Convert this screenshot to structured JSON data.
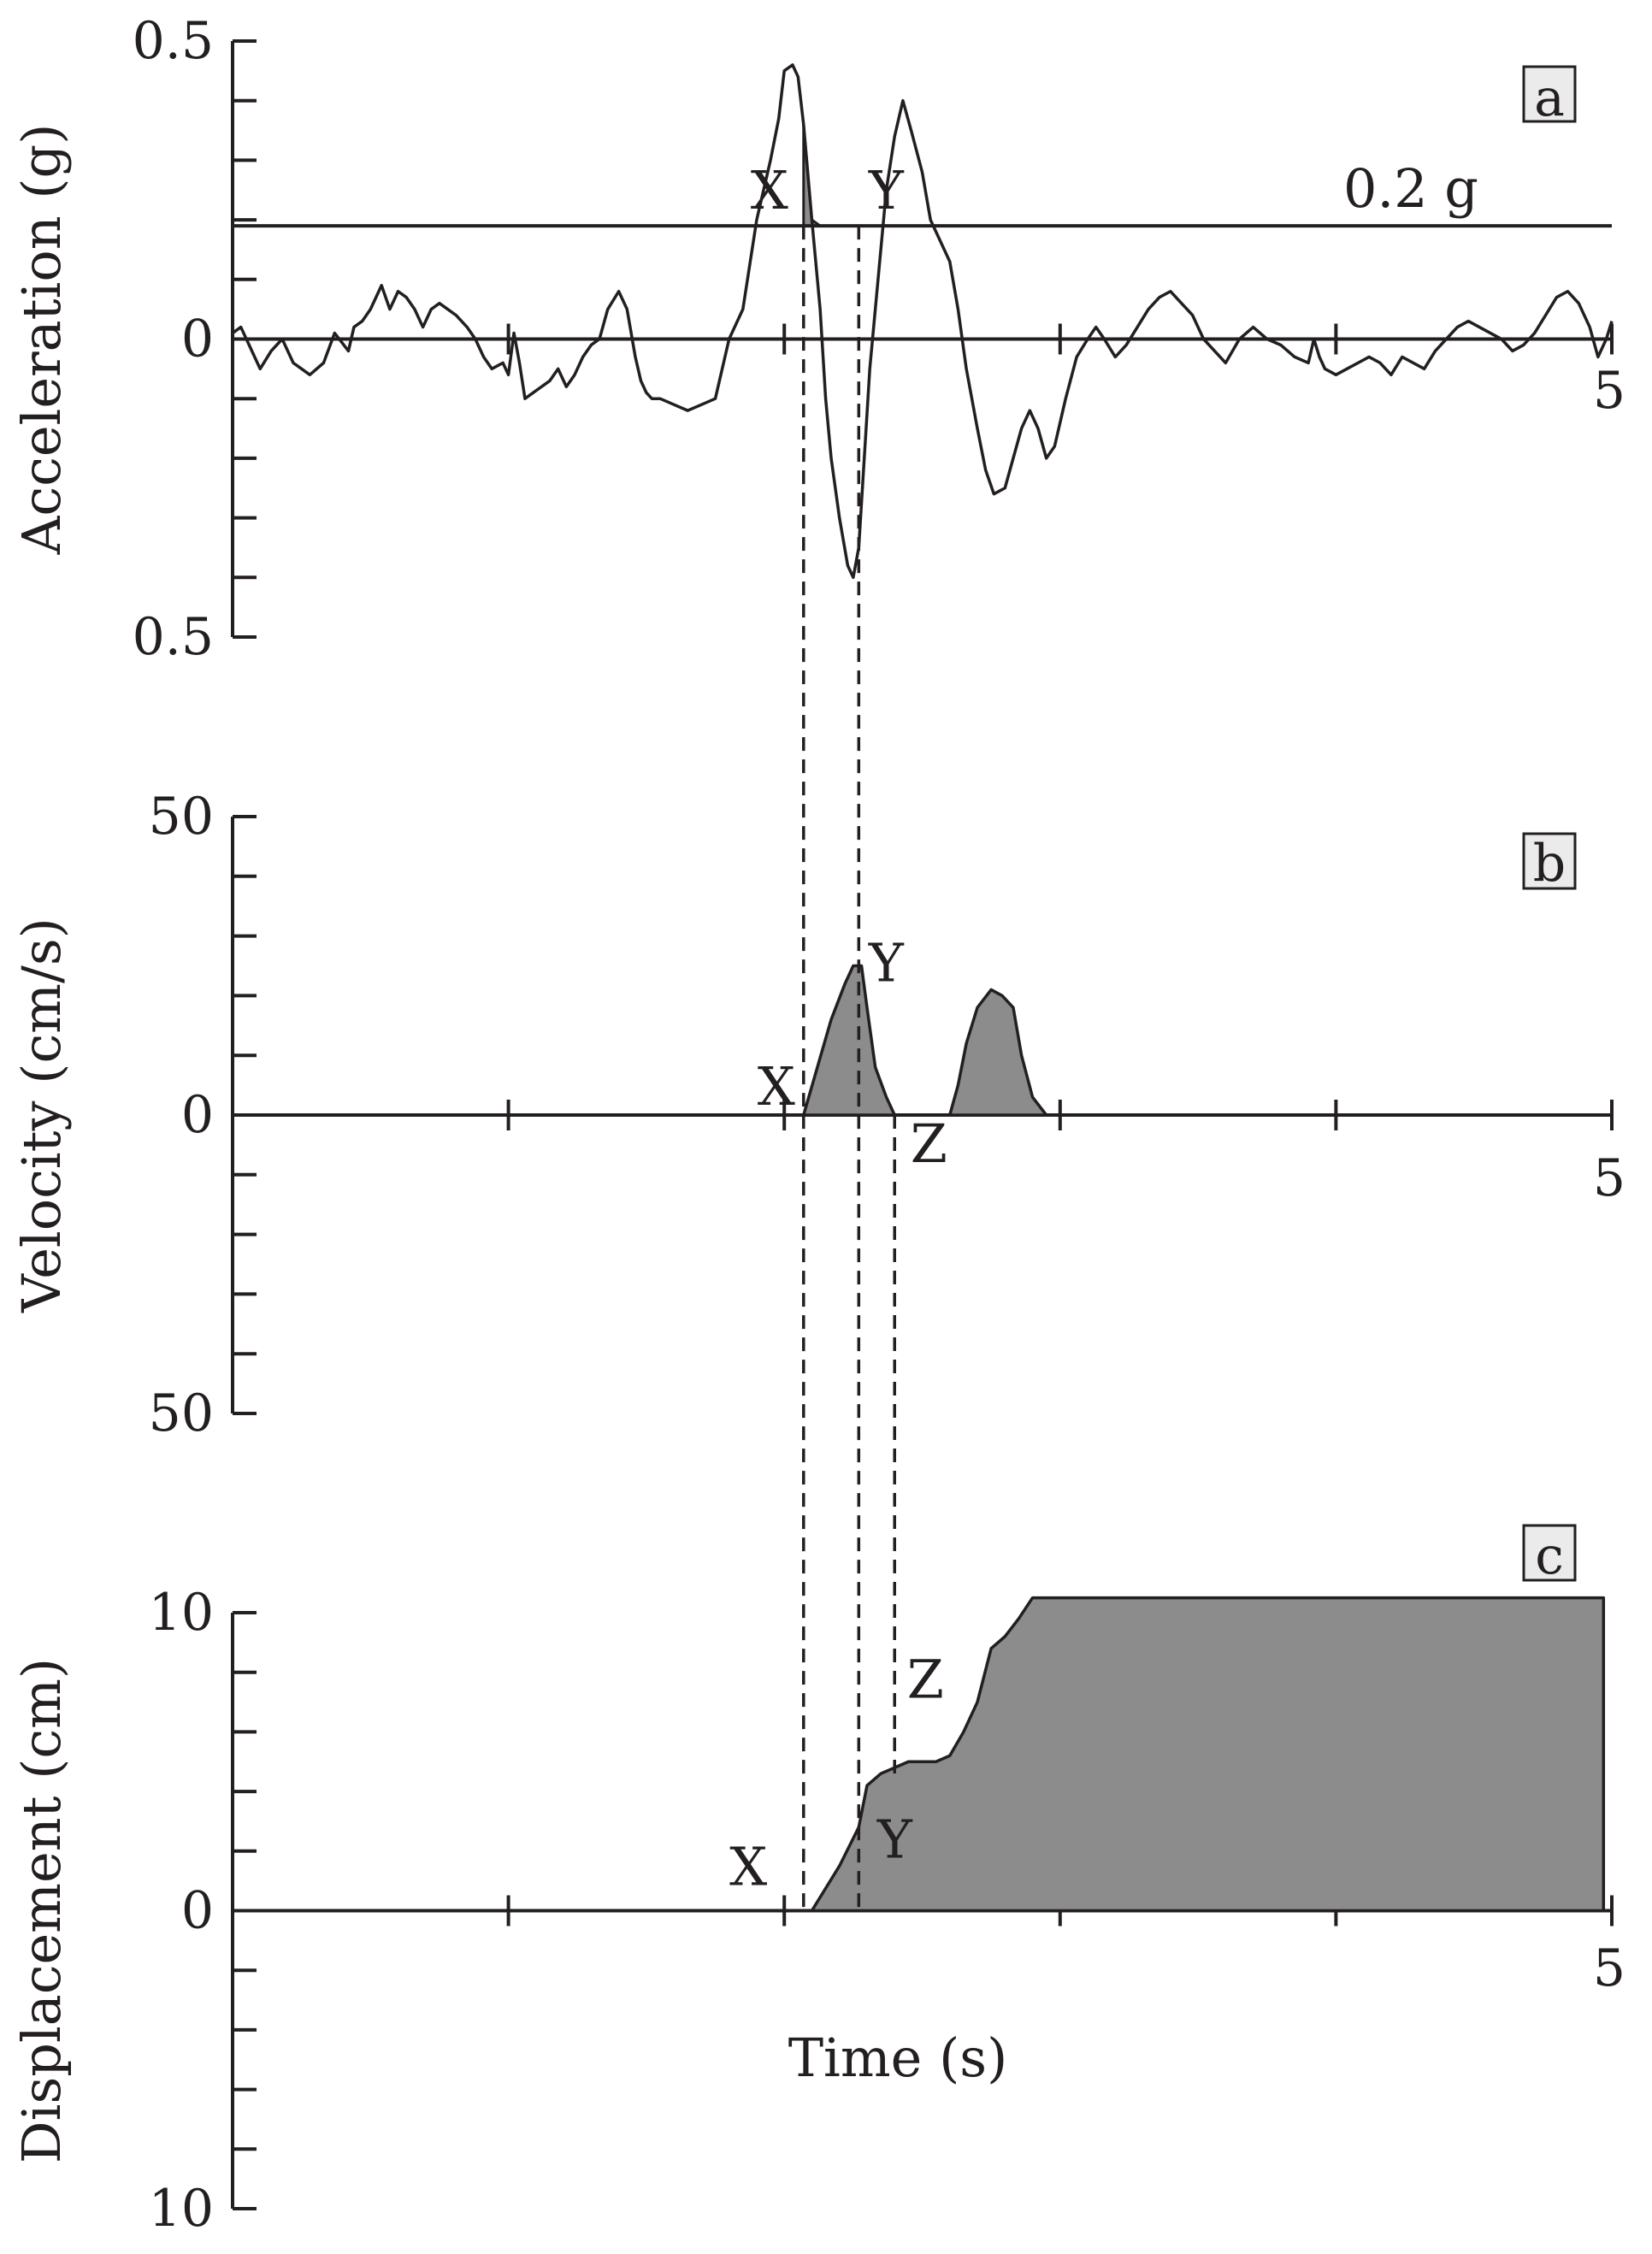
{
  "colors": {
    "ink": "#231f20",
    "fill": "#8c8c8c",
    "badge_bg": "#ebebeb"
  },
  "chart_data": [
    {
      "type": "line",
      "panel": "a",
      "xlabel": "",
      "ylabel": "Acceleration (g)",
      "xlim": [
        0,
        5
      ],
      "ylim": [
        -0.5,
        0.5
      ],
      "x_tick_labels": [
        {
          "x": 5,
          "label": "5"
        }
      ],
      "y_tick_labels": [
        {
          "y": 0.5,
          "label": "0.5"
        },
        {
          "y": 0,
          "label": "0"
        },
        {
          "y": -0.5,
          "label": "0.5"
        }
      ],
      "threshold": {
        "y": 0.19,
        "label": "0.2 g"
      },
      "point_labels": [
        {
          "text": "X",
          "x": 2.07,
          "y": 0.19
        },
        {
          "text": "Y",
          "x": 2.27,
          "y": 0.19
        }
      ],
      "shaded_intervals": [
        [
          2.07,
          2.27
        ],
        [
          2.56,
          2.83
        ]
      ],
      "series": [
        {
          "x": [
            0,
            0.03,
            0.06,
            0.1,
            0.14,
            0.18,
            0.22,
            0.25,
            0.28,
            0.33,
            0.37,
            0.42,
            0.44,
            0.47,
            0.5,
            0.54,
            0.57,
            0.6,
            0.63,
            0.66,
            0.69,
            0.72,
            0.75,
            0.78,
            0.81,
            0.85,
            0.88,
            0.91,
            0.94,
            0.98,
            1.0,
            1.02,
            1.04,
            1.06,
            1.09,
            1.12,
            1.15,
            1.18,
            1.21,
            1.24,
            1.27,
            1.3,
            1.33,
            1.36,
            1.4,
            1.43,
            1.46,
            1.48,
            1.5,
            1.52,
            1.55,
            1.6,
            1.65,
            1.7,
            1.75,
            1.8,
            1.85,
            1.9,
            1.95,
            1.98,
            2.0,
            2.03,
            2.05,
            2.07,
            2.1,
            2.13,
            2.15,
            2.17,
            2.2,
            2.23,
            2.25,
            2.27,
            2.29,
            2.31,
            2.34,
            2.37,
            2.4,
            2.43,
            2.46,
            2.5,
            2.53,
            2.56,
            2.6,
            2.63,
            2.66,
            2.7,
            2.73,
            2.76,
            2.8,
            2.83,
            2.86,
            2.89,
            2.92,
            2.95,
            2.98,
            3.02,
            3.06,
            3.1,
            3.13,
            3.16,
            3.2,
            3.24,
            3.28,
            3.32,
            3.36,
            3.4,
            3.44,
            3.48,
            3.52,
            3.56,
            3.6,
            3.65,
            3.7,
            3.75,
            3.8,
            3.85,
            3.9,
            3.92,
            3.94,
            3.96,
            4.0,
            4.04,
            4.08,
            4.12,
            4.16,
            4.2,
            4.24,
            4.28,
            4.32,
            4.36,
            4.4,
            4.44,
            4.48,
            4.52,
            4.56,
            4.6,
            4.64,
            4.68,
            4.72,
            4.76,
            4.8,
            4.84,
            4.88,
            4.92,
            4.95,
            4.98,
            5.0
          ],
          "y": [
            0.01,
            0.02,
            -0.01,
            -0.05,
            -0.02,
            0.0,
            -0.04,
            -0.05,
            -0.06,
            -0.04,
            0.01,
            -0.02,
            0.02,
            0.03,
            0.05,
            0.09,
            0.05,
            0.08,
            0.07,
            0.05,
            0.02,
            0.05,
            0.06,
            0.05,
            0.04,
            0.02,
            0.0,
            -0.03,
            -0.05,
            -0.04,
            -0.06,
            0.01,
            -0.04,
            -0.1,
            -0.09,
            -0.08,
            -0.07,
            -0.05,
            -0.08,
            -0.06,
            -0.03,
            -0.01,
            0.0,
            0.05,
            0.08,
            0.05,
            -0.03,
            -0.07,
            -0.09,
            -0.1,
            -0.1,
            -0.11,
            -0.12,
            -0.11,
            -0.1,
            0.0,
            0.05,
            0.2,
            0.3,
            0.37,
            0.45,
            0.46,
            0.44,
            0.36,
            0.2,
            0.05,
            -0.1,
            -0.2,
            -0.3,
            -0.38,
            -0.4,
            -0.35,
            -0.2,
            -0.05,
            0.1,
            0.25,
            0.34,
            0.4,
            0.35,
            0.28,
            0.2,
            0.17,
            0.13,
            0.05,
            -0.05,
            -0.15,
            -0.22,
            -0.26,
            -0.25,
            -0.2,
            -0.15,
            -0.12,
            -0.15,
            -0.2,
            -0.18,
            -0.1,
            -0.03,
            0.0,
            0.02,
            0.0,
            -0.03,
            -0.01,
            0.02,
            0.05,
            0.07,
            0.08,
            0.06,
            0.04,
            0.0,
            -0.02,
            -0.04,
            0.0,
            0.02,
            0.0,
            -0.01,
            -0.03,
            -0.04,
            0.0,
            -0.03,
            -0.05,
            -0.06,
            -0.05,
            -0.04,
            -0.03,
            -0.04,
            -0.06,
            -0.03,
            -0.04,
            -0.05,
            -0.02,
            0.0,
            0.02,
            0.03,
            0.02,
            0.01,
            0.0,
            -0.02,
            -0.01,
            0.01,
            0.04,
            0.07,
            0.08,
            0.06,
            0.02,
            -0.03,
            0.0,
            0.03
          ]
        }
      ]
    },
    {
      "type": "area",
      "panel": "b",
      "xlabel": "",
      "ylabel": "Velocity (cm/s)",
      "xlim": [
        0,
        5
      ],
      "ylim": [
        -50,
        50
      ],
      "x_tick_labels": [
        {
          "x": 5,
          "label": "5"
        }
      ],
      "y_tick_labels": [
        {
          "y": 50,
          "label": "50"
        },
        {
          "y": 0,
          "label": "0"
        },
        {
          "y": -50,
          "label": "50"
        }
      ],
      "point_labels": [
        {
          "text": "X",
          "x": 2.07,
          "y": 0
        },
        {
          "text": "Y",
          "x": 2.27,
          "y": 25
        },
        {
          "text": "Z",
          "x": 2.4,
          "y": 0
        }
      ],
      "series": [
        {
          "x": [
            2.07,
            2.12,
            2.17,
            2.22,
            2.25,
            2.28,
            2.3,
            2.33,
            2.37,
            2.4
          ],
          "y": [
            0,
            8,
            16,
            22,
            25,
            25,
            18,
            8,
            3,
            0
          ]
        },
        {
          "x": [
            2.6,
            2.63,
            2.66,
            2.7,
            2.75,
            2.79,
            2.83,
            2.86,
            2.9,
            2.95
          ],
          "y": [
            0,
            5,
            12,
            18,
            21,
            20,
            18,
            10,
            3,
            0
          ]
        }
      ]
    },
    {
      "type": "area",
      "panel": "c",
      "xlabel": "Time (s)",
      "ylabel": "Displacement (cm)",
      "xlim": [
        0,
        5
      ],
      "ylim": [
        -10,
        10
      ],
      "x_tick_labels": [
        {
          "x": 5,
          "label": "5"
        }
      ],
      "y_tick_labels": [
        {
          "y": 10,
          "label": "10"
        },
        {
          "y": 0,
          "label": "0"
        },
        {
          "y": -10,
          "label": "10"
        }
      ],
      "point_labels": [
        {
          "text": "X",
          "x": 2.0,
          "y": 0
        },
        {
          "text": "Y",
          "x": 2.27,
          "y": 2.5
        },
        {
          "text": "Z",
          "x": 2.4,
          "y": 5
        }
      ],
      "series": [
        {
          "x": [
            0,
            2.0,
            2.1,
            2.2,
            2.27,
            2.3,
            2.35,
            2.4,
            2.45,
            2.5,
            2.55,
            2.6,
            2.65,
            2.7,
            2.75,
            2.8,
            2.85,
            2.9,
            2.95,
            3.0,
            4.97
          ],
          "y": [
            0,
            0,
            0,
            1.5,
            2.8,
            4.2,
            4.6,
            4.8,
            5.0,
            5.0,
            5.0,
            5.2,
            6.0,
            7.0,
            8.8,
            9.2,
            9.8,
            10.5,
            10.5,
            10.5,
            10.5
          ]
        }
      ]
    }
  ]
}
